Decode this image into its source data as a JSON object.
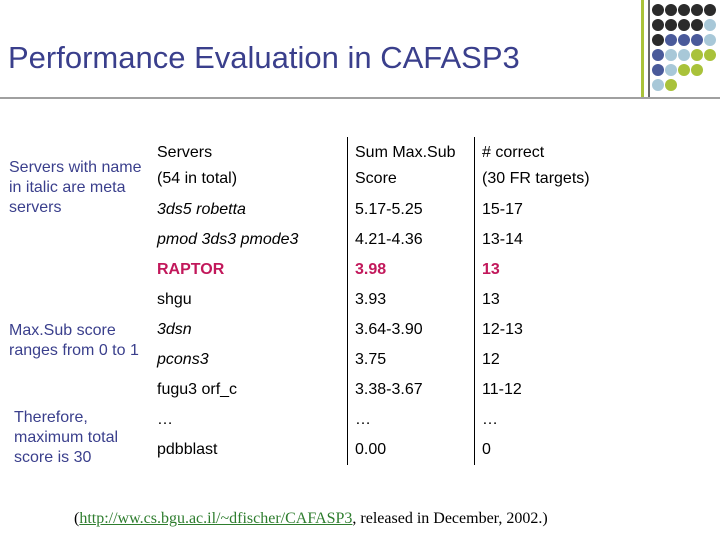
{
  "title": "Performance Evaluation in CAFASP3",
  "decor": {
    "accent_colors": [
      "#2b2b2b",
      "#4a5a9a",
      "#a8c8d8",
      "#a9c23a"
    ]
  },
  "side_notes": [
    "Servers with name in italic are meta servers",
    "Max.Sub score ranges from 0 to 1",
    "Therefore, maximum total score is 30"
  ],
  "table": {
    "headers": [
      [
        "Servers",
        "(54 in total)"
      ],
      [
        "Sum Max.Sub",
        "Score"
      ],
      [
        "# correct",
        "(30 FR targets)"
      ]
    ],
    "rows": [
      {
        "server": "3ds5 robetta",
        "score": "5.17-5.25",
        "correct": "15-17"
      },
      {
        "server": "pmod 3ds3 pmode3",
        "score": "4.21-4.36",
        "correct": "13-14"
      },
      {
        "server": "RAPTOR",
        "score": "3.98",
        "correct": "13"
      },
      {
        "server": "shgu",
        "score": "3.93",
        "correct": "13"
      },
      {
        "server": "3dsn",
        "score": "3.64-3.90",
        "correct": "12-13"
      },
      {
        "server": "pcons3",
        "score": "3.75",
        "correct": "12"
      },
      {
        "server": "fugu3 orf_c",
        "score": "3.38-3.67",
        "correct": "11-12"
      },
      {
        "server": "…",
        "score": "…",
        "correct": "…"
      },
      {
        "server": "pdbblast",
        "score": "0.00",
        "correct": "0"
      }
    ],
    "highlight_color": "#c2185b"
  },
  "footer": {
    "open": "(",
    "link": "http://ww.cs.bgu.ac.il/~dfischer/CAFASP3",
    "rest": ", released in December, 2002.)"
  }
}
